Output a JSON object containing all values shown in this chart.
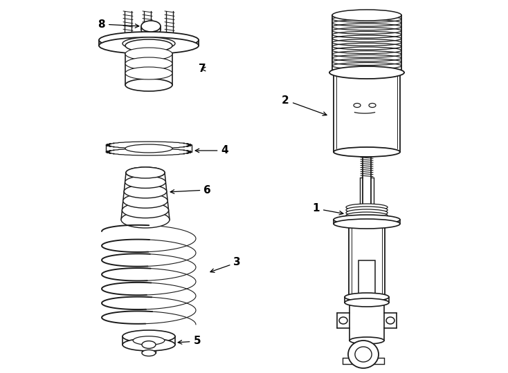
{
  "background_color": "#ffffff",
  "line_color": "#1a1a1a",
  "line_width": 1.1,
  "fig_width": 7.34,
  "fig_height": 5.4,
  "dpi": 100
}
